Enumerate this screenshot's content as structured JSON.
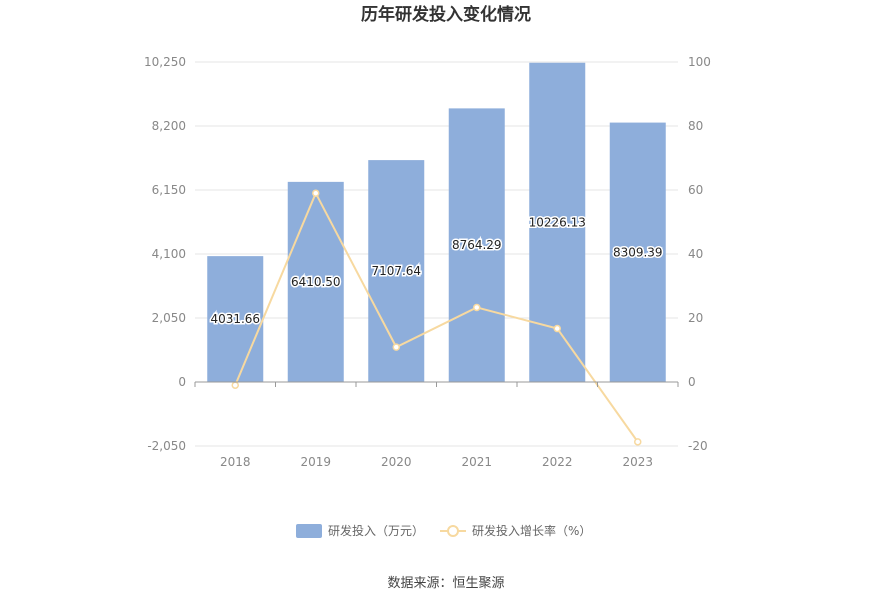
{
  "chart_data": {
    "type": "bar",
    "title": "历年研发投入变化情况",
    "categories": [
      "2018",
      "2019",
      "2020",
      "2021",
      "2022",
      "2023"
    ],
    "series": [
      {
        "name": "研发投入（万元）",
        "type": "bar",
        "axis": "left",
        "values": [
          4031.66,
          6410.5,
          7107.64,
          8764.29,
          10226.13,
          8309.39
        ],
        "labels": [
          "4031.66",
          "6410.50",
          "7107.64",
          "8764.29",
          "10226.13",
          "8309.39"
        ],
        "color": "#8eaedb"
      },
      {
        "name": "研发投入增长率（%）",
        "type": "line",
        "axis": "right",
        "values": [
          -1.0,
          59.0,
          10.9,
          23.3,
          16.7,
          -18.7
        ],
        "color": "#f7d9a0"
      }
    ],
    "y_left": {
      "ylim": [
        -2050,
        10250
      ],
      "ticks": [
        -2050,
        0,
        2050,
        4100,
        6150,
        8200,
        10250
      ],
      "tick_labels": [
        "-2,050",
        "0",
        "2,050",
        "4,100",
        "6,150",
        "8,200",
        "10,250"
      ]
    },
    "y_right": {
      "ylim": [
        -20,
        100
      ],
      "ticks": [
        -20,
        0,
        20,
        40,
        60,
        80,
        100
      ],
      "tick_labels": [
        "-20",
        "0",
        "20",
        "40",
        "60",
        "80",
        "100"
      ]
    },
    "grid": true,
    "legend": "bottom-center"
  },
  "footer": {
    "source": "数据来源：恒生聚源"
  }
}
